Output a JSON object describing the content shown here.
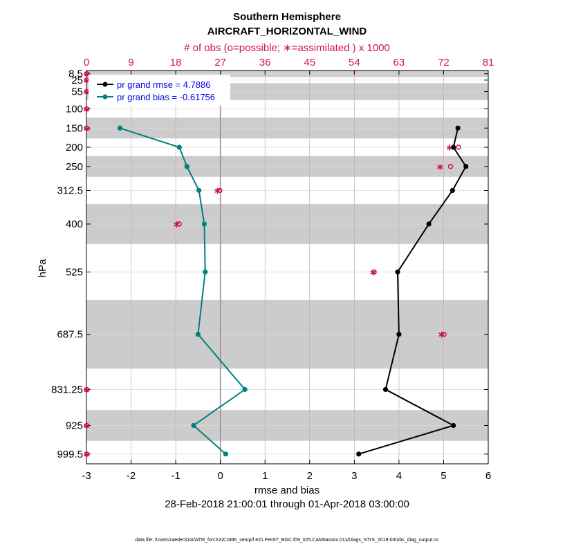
{
  "title": "Southern Hemisphere",
  "subtitle": "AIRCRAFT_HORIZONTAL_WIND",
  "top_axis_label": "# of obs (o=possible; ∗=assimilated ) x 1000",
  "colors": {
    "rmse": "#000000",
    "bias": "#008080",
    "obs": "#cc1155",
    "legend_text": "#0000ee",
    "band": "#cccccc",
    "grid_top": "#d8a0b8",
    "zero_line": "#b08898"
  },
  "legend": [
    {
      "label": "pr grand rmse = 4.7886",
      "series": "rmse"
    },
    {
      "label": "pr grand bias = -0.61756",
      "series": "bias"
    }
  ],
  "footer": {
    "date_range": "28-Feb-2018 21:00:01 through 01-Apr-2018 03:00:00",
    "data_file": "data file: /Users/raeder/DAI/ATM_forcXX/CAM6_setup/f.e21.FHIST_BGC.f09_025.CAM6assim.011/Diags_NTrS_2018-03/obs_diag_output.nc"
  },
  "chart_data": {
    "type": "line",
    "xlabel": "rmse and bias",
    "ylabel": "hPa",
    "xlim": [
      -3,
      6
    ],
    "x_ticks": [
      "-3",
      "-2",
      "-1",
      "0",
      "1",
      "2",
      "3",
      "4",
      "5",
      "6"
    ],
    "top_xlim": [
      0,
      81
    ],
    "top_ticks": [
      "0",
      "9",
      "18",
      "27",
      "36",
      "45",
      "54",
      "63",
      "72",
      "81"
    ],
    "ylim_hpa": [
      0,
      1025
    ],
    "levels": [
      8.5,
      25,
      55,
      100,
      150,
      200,
      250,
      312.5,
      400,
      525,
      687.5,
      831.25,
      925,
      999.5
    ],
    "level_labels": [
      "8.5",
      "25",
      "55",
      "100",
      "150",
      "200",
      "250",
      "312.5",
      "400",
      "525",
      "687.5",
      "831.25",
      "925",
      "999.5"
    ],
    "level_edges": [
      0,
      17,
      33,
      77,
      123,
      177,
      223,
      277,
      348,
      452,
      598,
      777,
      885,
      965,
      1025
    ],
    "series": [
      {
        "name": "pr grand rmse",
        "key": "rmse",
        "levels": [
          150,
          200,
          250,
          312.5,
          400,
          525,
          687.5,
          831.25,
          925,
          999.5
        ],
        "values": [
          5.32,
          5.22,
          5.5,
          5.2,
          4.67,
          3.97,
          4.0,
          3.7,
          5.22,
          3.1
        ]
      },
      {
        "name": "pr grand bias",
        "key": "bias",
        "levels": [
          150,
          200,
          250,
          312.5,
          400,
          525,
          687.5,
          831.25,
          925,
          999.5
        ],
        "values": [
          -2.25,
          -0.92,
          -0.75,
          -0.48,
          -0.36,
          -0.34,
          -0.5,
          0.55,
          -0.6,
          0.12
        ]
      }
    ],
    "obs_possible": {
      "levels": [
        8.5,
        25,
        55,
        100,
        150,
        200,
        250,
        312.5,
        400,
        525,
        687.5,
        831.25,
        925,
        999.5
      ],
      "values": [
        0.05,
        0.05,
        0.05,
        0.05,
        0.05,
        75.0,
        73.4,
        26.9,
        18.7,
        58.0,
        72.1,
        0.05,
        0.05,
        0.05
      ]
    },
    "obs_assimilated": {
      "levels": [
        8.5,
        25,
        55,
        100,
        150,
        200,
        250,
        312.5,
        400,
        525,
        687.5,
        831.25,
        925,
        999.5
      ],
      "values": [
        0.05,
        0.05,
        0.05,
        0.05,
        0.05,
        73.2,
        71.3,
        26.4,
        18.2,
        57.8,
        71.6,
        0.05,
        0.05,
        0.05
      ]
    }
  }
}
